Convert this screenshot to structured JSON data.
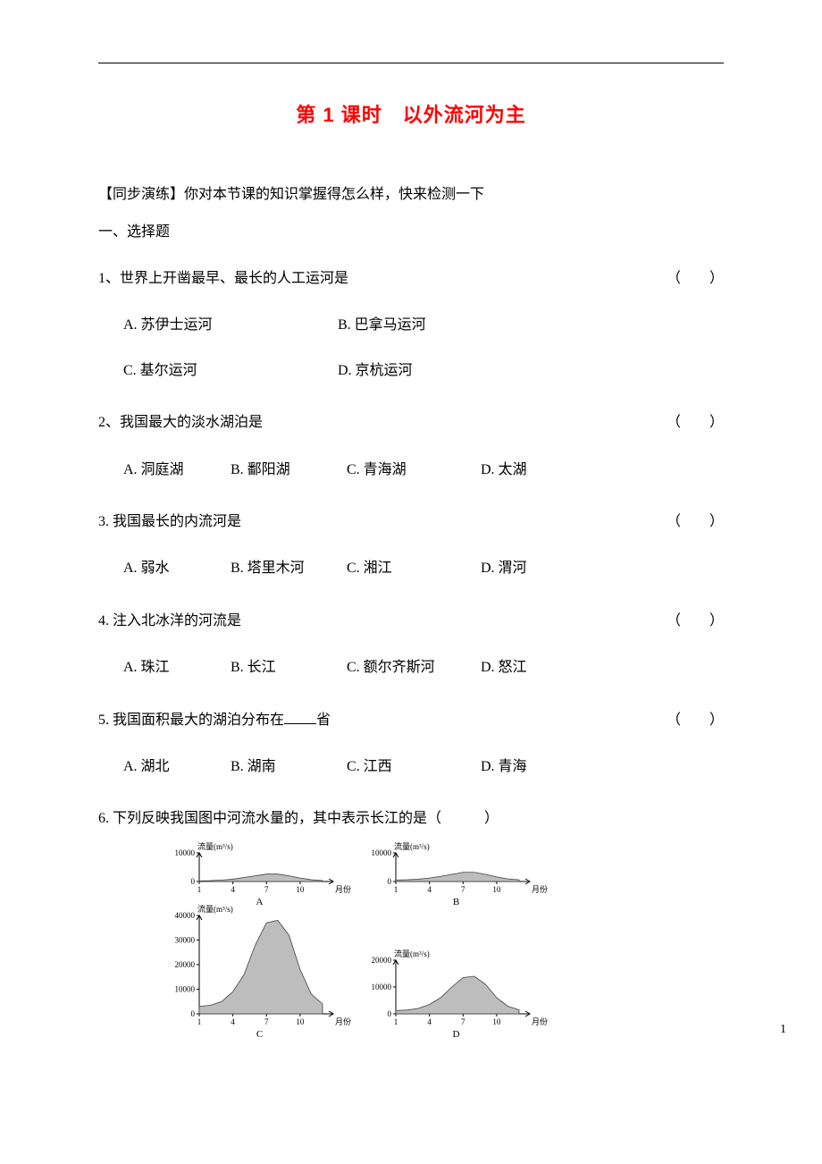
{
  "title": "第 1 课时　以外流河为主",
  "intro": "【同步演练】你对本节课的知识掌握得怎么样，快来检测一下",
  "section1": "一、选择题",
  "parenL": "（",
  "parenR": "）",
  "q1": {
    "text": "1、世界上开凿最早、最长的人工运河是",
    "A": "A. 苏伊士运河",
    "B": "B. 巴拿马运河",
    "C": "C. 基尔运河",
    "D": "D. 京杭运河"
  },
  "q2": {
    "text": "2、我国最大的淡水湖泊是",
    "A": "A. 洞庭湖",
    "B": "B. 鄱阳湖",
    "C": "C. 青海湖",
    "D": "D. 太湖"
  },
  "q3": {
    "text": "3. 我国最长的内流河是",
    "A": "A. 弱水",
    "B": "B. 塔里木河",
    "C": "C. 湘江",
    "D": "D. 渭河"
  },
  "q4": {
    "text": "4. 注入北冰洋的河流是",
    "A": "A. 珠江",
    "B": "B. 长江",
    "C": "C. 额尔齐斯河",
    "D": "D. 怒江"
  },
  "q5": {
    "pre": "5. 我国面积最大的湖泊分布在",
    "post": "省",
    "A": "A. 湖北",
    "B": "B. 湖南",
    "C": "C. 江西",
    "D": "D. 青海"
  },
  "q6": {
    "text": "6. 下列反映我国图中河流水量的，其中表示长江的是（　　　）"
  },
  "chart_common": {
    "y_axis_title": "流量(m³/s)",
    "x_axis_label": "月份",
    "x_ticks": [
      1,
      4,
      7,
      10
    ],
    "fill_color": "#bdbdbd",
    "stroke_color": "#404040",
    "bg": "#ffffff",
    "axis_color": "#000000",
    "tick_fontsize": 9,
    "title_fontsize": 9
  },
  "chartA": {
    "label": "A",
    "ymax": 10000,
    "y_ticks": [
      0,
      10000
    ],
    "values": [
      200,
      300,
      500,
      800,
      1400,
      2000,
      2600,
      2600,
      2000,
      1200,
      600,
      300
    ],
    "xlim": [
      1,
      12
    ]
  },
  "chartB": {
    "label": "B",
    "ymax": 10000,
    "y_ticks": [
      0,
      10000
    ],
    "values": [
      500,
      600,
      800,
      1200,
      1800,
      2500,
      3200,
      3200,
      2500,
      1600,
      900,
      600
    ],
    "xlim": [
      1,
      12
    ]
  },
  "chartC": {
    "label": "C",
    "ymax": 40000,
    "y_ticks": [
      0,
      10000,
      20000,
      30000,
      40000
    ],
    "values": [
      3000,
      3500,
      5000,
      9000,
      16000,
      28000,
      37000,
      38000,
      32000,
      18000,
      8000,
      4000
    ],
    "xlim": [
      1,
      12
    ]
  },
  "chartD": {
    "label": "D",
    "ymax": 20000,
    "y_ticks": [
      0,
      10000,
      20000
    ],
    "values": [
      1200,
      1400,
      2000,
      3500,
      6000,
      10000,
      13500,
      14000,
      11000,
      6000,
      2800,
      1500
    ],
    "xlim": [
      1,
      12
    ]
  },
  "pageNum": "1"
}
